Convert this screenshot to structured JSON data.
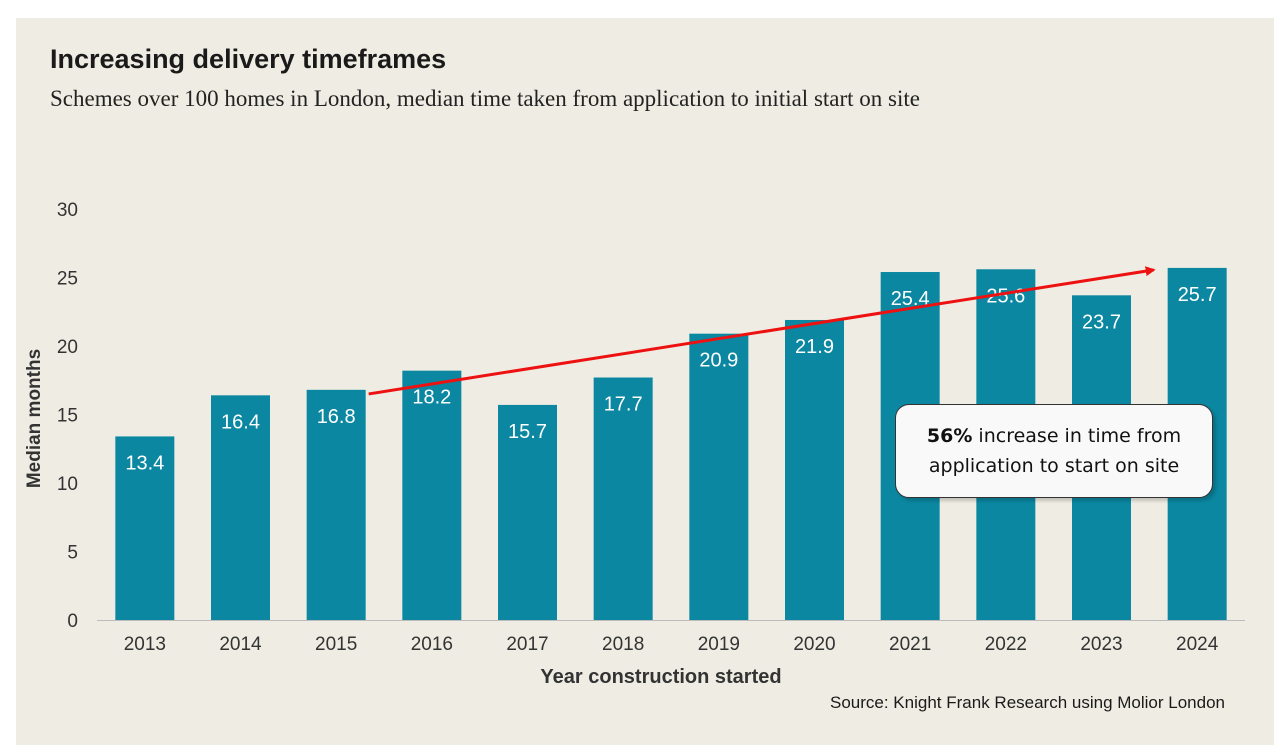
{
  "header": {
    "title": "Increasing delivery timeframes",
    "subtitle": "Schemes over 100 homes in London, median time taken from application to initial start on site"
  },
  "callout": {
    "highlight": "56%",
    "text": " increase in time from application to start on site"
  },
  "source": "Source: Knight Frank Research using Molior London",
  "colors": {
    "background": "#efede3",
    "bar": "#0b87a1",
    "trend_arrow": "#ee1111",
    "bar_label": "#ffffff"
  },
  "chart_data": {
    "type": "bar",
    "categories": [
      "2013",
      "2014",
      "2015",
      "2016",
      "2017",
      "2018",
      "2019",
      "2020",
      "2021",
      "2022",
      "2023",
      "2024"
    ],
    "values": [
      13.4,
      16.4,
      16.8,
      18.2,
      15.7,
      17.7,
      20.9,
      21.9,
      25.4,
      25.6,
      23.7,
      25.7
    ],
    "data_labels": [
      "13.4",
      "16.4",
      "16.8",
      "18.2",
      "15.7",
      "17.7",
      "20.9",
      "21.9",
      "25.4",
      "25.6",
      "23.7",
      "25.7"
    ],
    "title": "",
    "xlabel": "Year construction started",
    "ylabel": "Median months",
    "ylim": [
      0,
      30
    ],
    "yticks": [
      "0",
      "5",
      "10",
      "15",
      "20",
      "25",
      "30"
    ],
    "grid": false,
    "legend": "none",
    "annotations": [
      {
        "type": "trend-arrow",
        "from": {
          "x": "2015",
          "y": 16.5
        },
        "to": {
          "x": "2024",
          "y": 25.7
        }
      }
    ]
  }
}
